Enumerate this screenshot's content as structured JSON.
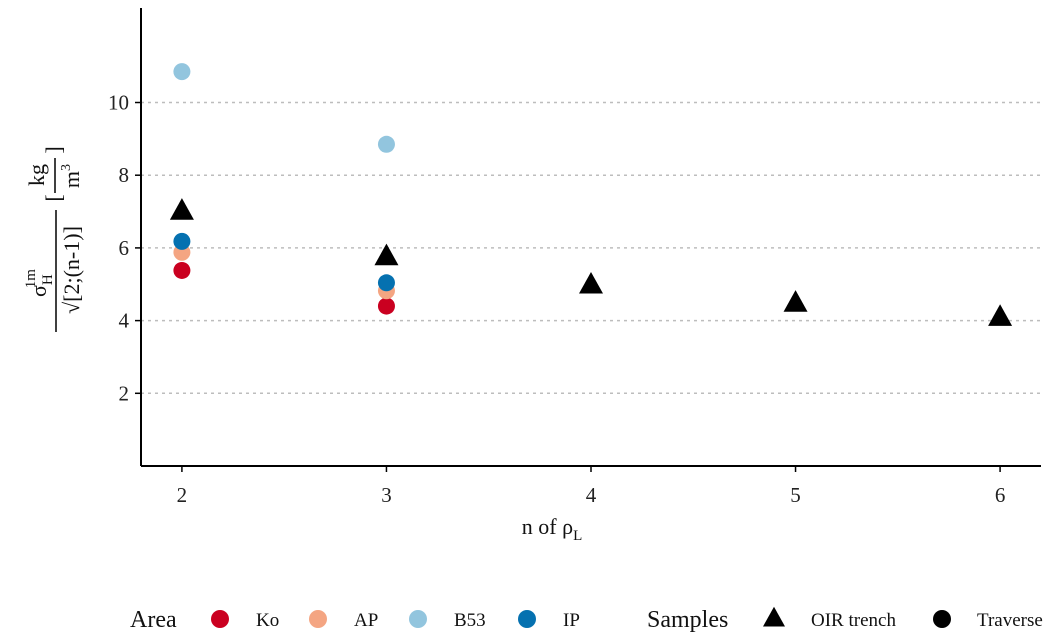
{
  "chart_data": {
    "type": "scatter",
    "xlabel_main": "n of ρ",
    "xlabel_sub": "L",
    "ylabel": {
      "sigma": "σ",
      "sup": "1m",
      "sub": "H",
      "denominator": "√[2;(n-1)]",
      "unit_num": "kg",
      "unit_den": "m",
      "unit_den_exp": "3",
      "bracket_open": "[",
      "bracket_close": "]"
    },
    "xlim": [
      1.8,
      6.2
    ],
    "ylim": [
      0,
      12.6
    ],
    "x_ticks": [
      "2",
      "3",
      "4",
      "5",
      "6"
    ],
    "y_ticks": [
      "2",
      "4",
      "6",
      "8",
      "10"
    ],
    "grid": "horizontal dotted",
    "series": [
      {
        "name": "Ko",
        "color": "#CA0020",
        "shape": "circle",
        "points": [
          {
            "x": 2,
            "y": 5.38
          },
          {
            "x": 3,
            "y": 4.4
          }
        ]
      },
      {
        "name": "AP",
        "color": "#F4A582",
        "shape": "circle",
        "points": [
          {
            "x": 2,
            "y": 5.88
          },
          {
            "x": 3,
            "y": 4.82
          }
        ]
      },
      {
        "name": "B53",
        "color": "#92C5DE",
        "shape": "circle",
        "points": [
          {
            "x": 2,
            "y": 10.85
          },
          {
            "x": 3,
            "y": 8.85
          }
        ]
      },
      {
        "name": "IP",
        "color": "#0571B0",
        "shape": "circle",
        "points": [
          {
            "x": 2,
            "y": 6.18
          },
          {
            "x": 3,
            "y": 5.04
          }
        ]
      },
      {
        "name": "OIR trench",
        "color": "#000000",
        "shape": "triangle",
        "points": [
          {
            "x": 2,
            "y": 7.0
          },
          {
            "x": 3,
            "y": 5.75
          },
          {
            "x": 4,
            "y": 4.97
          },
          {
            "x": 5,
            "y": 4.47
          },
          {
            "x": 6,
            "y": 4.08
          }
        ]
      }
    ],
    "legend": {
      "placement": "bottom",
      "groups": [
        {
          "title": "Area",
          "entries": [
            {
              "label": "Ko",
              "color": "#CA0020",
              "shape": "circle"
            },
            {
              "label": "AP",
              "color": "#F4A582",
              "shape": "circle"
            },
            {
              "label": "B53",
              "color": "#92C5DE",
              "shape": "circle"
            },
            {
              "label": "IP",
              "color": "#0571B0",
              "shape": "circle"
            }
          ]
        },
        {
          "title": "Samples",
          "entries": [
            {
              "label": "OIR trench",
              "color": "#000000",
              "shape": "triangle"
            },
            {
              "label": "Traverse",
              "color": "#000000",
              "shape": "circle"
            }
          ]
        }
      ]
    }
  }
}
